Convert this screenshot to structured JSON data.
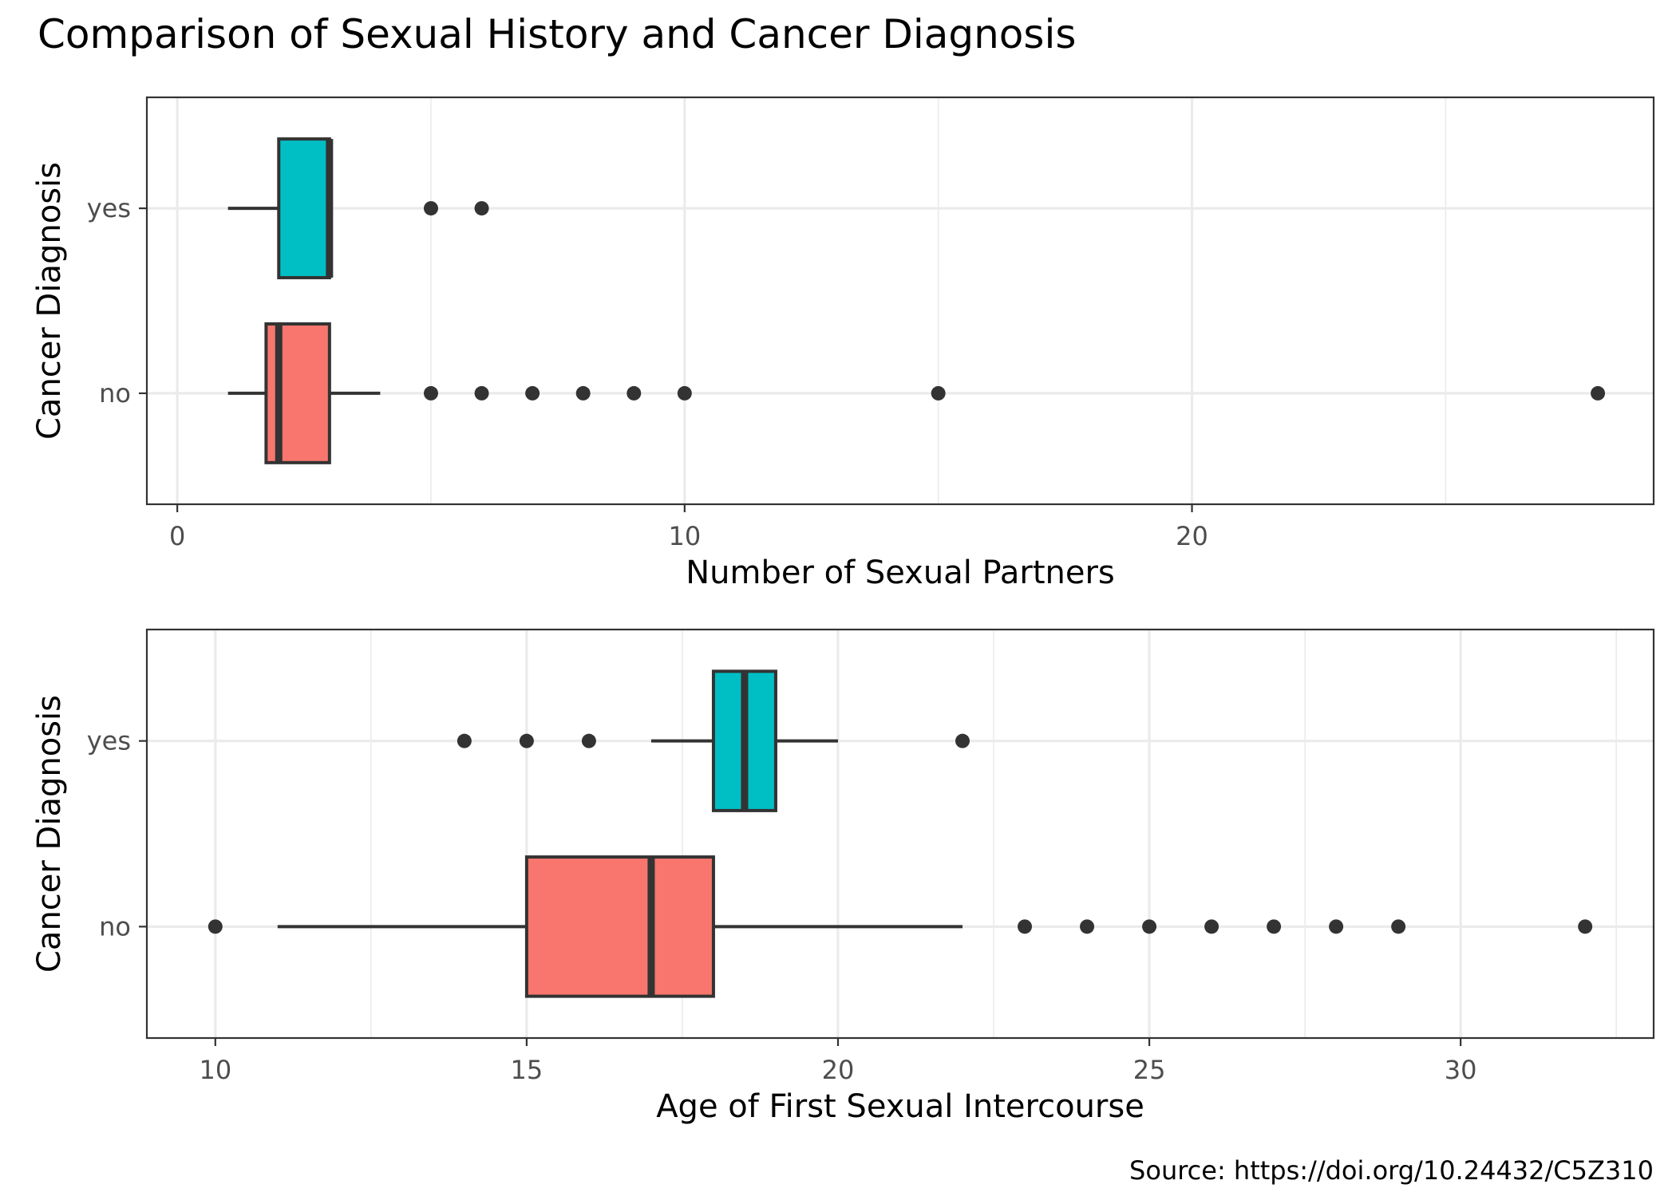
{
  "title": "Comparison of Sexual History and Cancer Diagnosis",
  "caption": "Source: https://doi.org/10.24432/C5Z310",
  "colors": {
    "no": "#F8766D",
    "yes": "#00BFC4"
  },
  "chart_data": [
    {
      "type": "boxplot",
      "orientation": "horizontal",
      "xlabel": "Number of Sexual Partners",
      "ylabel": "Cancer Diagnosis",
      "xlim": [
        -0.6,
        29.1
      ],
      "x_ticks": [
        0,
        10,
        20
      ],
      "x_minor_ticks": [
        5,
        15,
        25
      ],
      "categories": [
        "no",
        "yes"
      ],
      "grid": true,
      "series": [
        {
          "name": "no",
          "whisker_low": 1,
          "q1": 1.75,
          "median": 2,
          "q3": 3,
          "whisker_high": 4,
          "outliers": [
            5,
            6,
            7,
            8,
            9,
            10,
            15,
            28
          ]
        },
        {
          "name": "yes",
          "whisker_low": 1,
          "q1": 2,
          "median": 3,
          "q3": 3,
          "whisker_high": 3,
          "outliers": [
            5,
            6
          ]
        }
      ]
    },
    {
      "type": "boxplot",
      "orientation": "horizontal",
      "xlabel": "Age of First Sexual Intercourse",
      "ylabel": "Cancer Diagnosis",
      "xlim": [
        8.9,
        33.1
      ],
      "x_ticks": [
        10,
        15,
        20,
        25,
        30
      ],
      "x_minor_ticks": [
        12.5,
        17.5,
        22.5,
        27.5,
        32.5
      ],
      "categories": [
        "no",
        "yes"
      ],
      "grid": true,
      "series": [
        {
          "name": "no",
          "whisker_low": 11,
          "q1": 15,
          "median": 17,
          "q3": 18,
          "whisker_high": 22,
          "outliers": [
            10,
            23,
            24,
            25,
            26,
            27,
            28,
            29,
            32
          ]
        },
        {
          "name": "yes",
          "whisker_low": 17,
          "q1": 18,
          "median": 18.5,
          "q3": 19,
          "whisker_high": 20,
          "outliers": [
            14,
            15,
            16,
            22
          ]
        }
      ]
    }
  ]
}
